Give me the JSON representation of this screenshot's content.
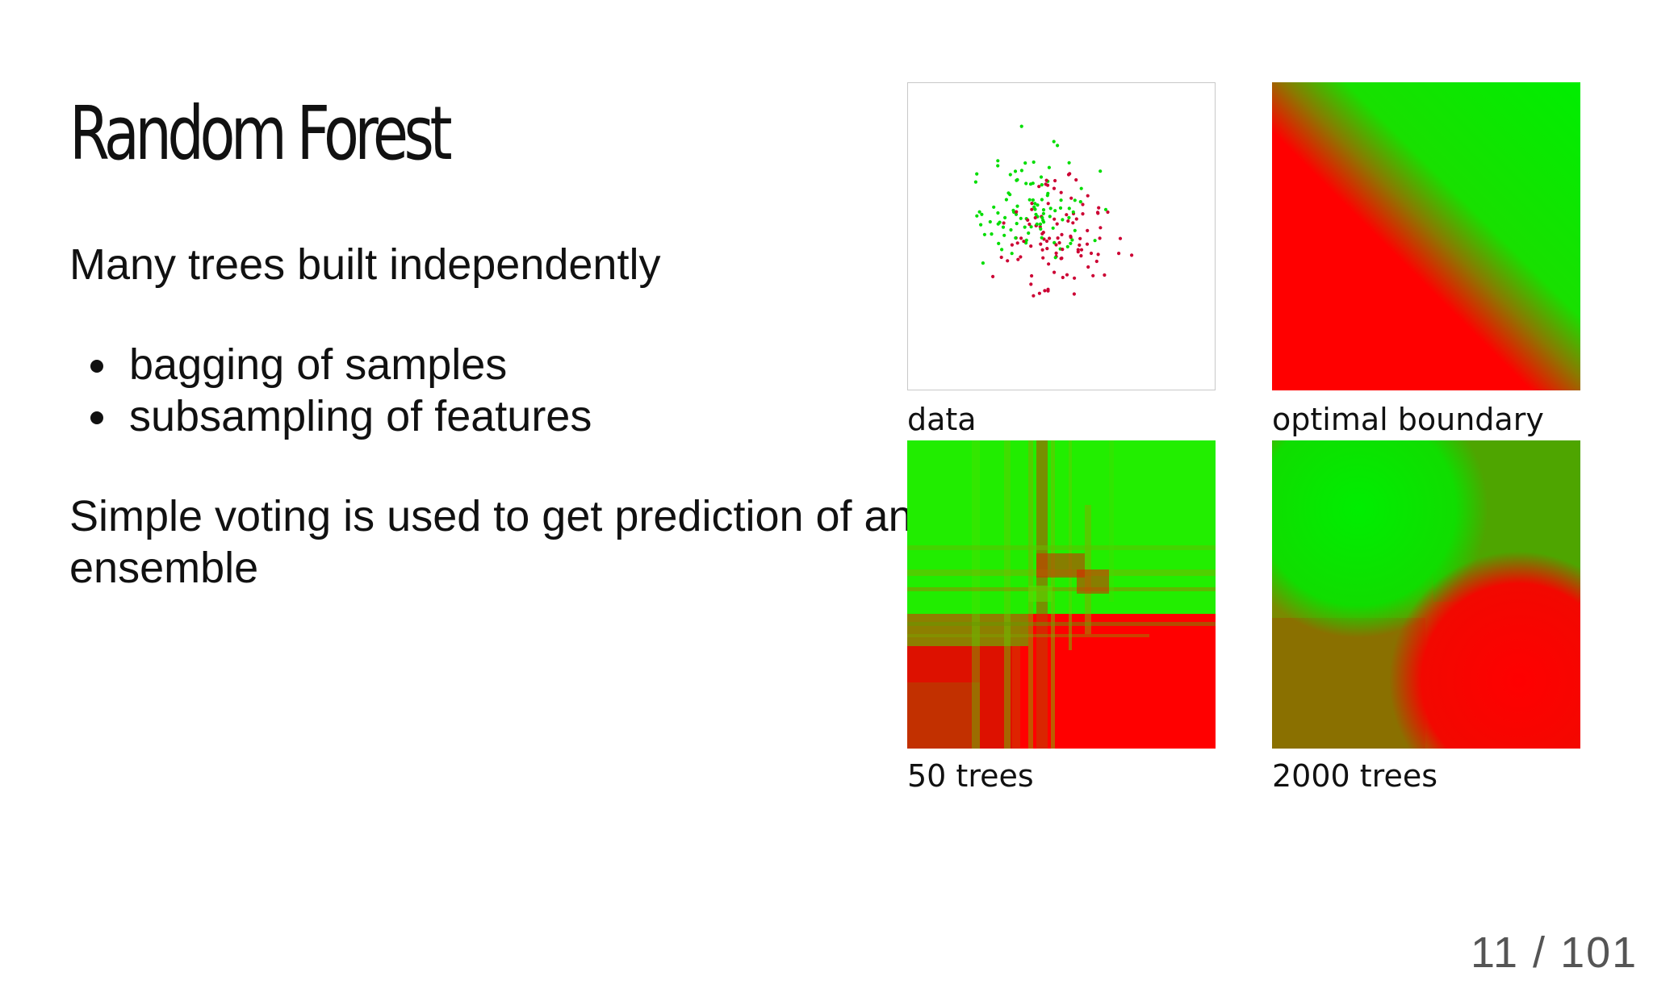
{
  "slide": {
    "title": "Random Forest",
    "lead": "Many trees built independently",
    "bullets": [
      "bagging of samples",
      "subsampling of features"
    ],
    "paragraph": "Simple voting is used to get prediction of an ensemble",
    "page_counter": "11 / 101"
  },
  "figure": {
    "captions": {
      "data": "data",
      "optimal": "optimal boundary",
      "trees50": "50 trees",
      "trees2000": "2000 trees"
    },
    "colors": {
      "class_a": "#00dd00",
      "class_b": "#cc0033"
    }
  }
}
